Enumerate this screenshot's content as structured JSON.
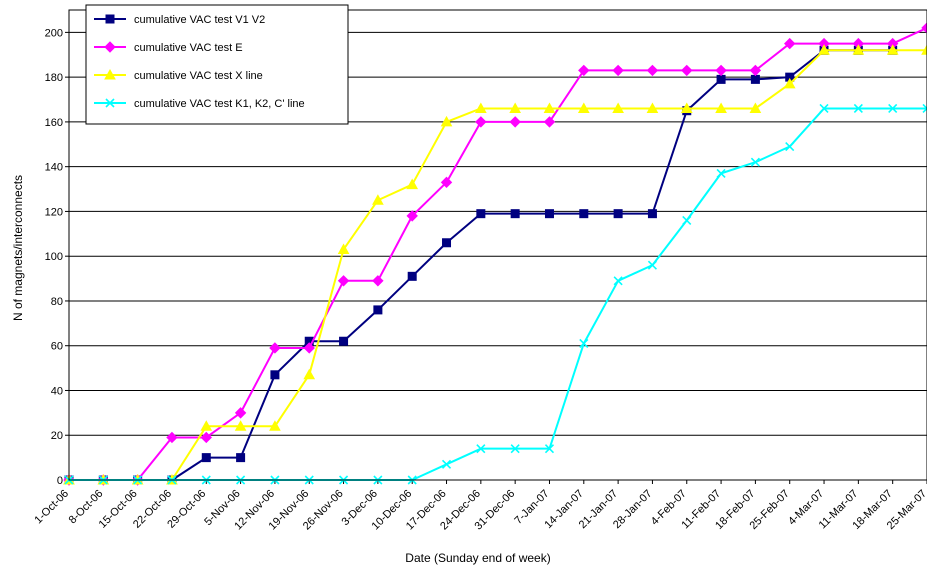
{
  "chart_data": {
    "type": "line",
    "title": "",
    "xlabel": "Date (Sunday end of week)",
    "ylabel": "N of magnets/interconnects",
    "ylim": [
      0,
      210
    ],
    "yticks": [
      0,
      20,
      40,
      60,
      80,
      100,
      120,
      140,
      160,
      180,
      200
    ],
    "grid": "horizontal",
    "legend_position": "top-left",
    "categories": [
      "1-Oct-06",
      "8-Oct-06",
      "15-Oct-06",
      "22-Oct-06",
      "29-Oct-06",
      "5-Nov-06",
      "12-Nov-06",
      "19-Nov-06",
      "26-Nov-06",
      "3-Dec-06",
      "10-Dec-06",
      "17-Dec-06",
      "24-Dec-06",
      "31-Dec-06",
      "7-Jan-07",
      "14-Jan-07",
      "21-Jan-07",
      "28-Jan-07",
      "4-Feb-07",
      "11-Feb-07",
      "18-Feb-07",
      "25-Feb-07",
      "4-Mar-07",
      "11-Mar-07",
      "18-Mar-07",
      "25-Mar-07"
    ],
    "series": [
      {
        "name": "cumulative VAC test V1 V2",
        "color": "#000080",
        "marker": "square",
        "x": [
          0,
          1,
          2,
          3,
          4,
          5,
          6,
          7,
          8,
          9,
          10,
          11,
          12,
          13,
          14,
          15,
          16,
          17,
          18,
          19,
          20,
          21,
          22,
          23,
          24
        ],
        "values": [
          0,
          0,
          0,
          0,
          10,
          10,
          47,
          62,
          62,
          76,
          91,
          106,
          119,
          119,
          119,
          119,
          119,
          119,
          165,
          179,
          179,
          180,
          192,
          192,
          192
        ]
      },
      {
        "name": "cumulative VAC test E",
        "color": "#FF00FF",
        "marker": "diamond",
        "x": [
          0,
          1,
          2,
          3,
          4,
          5,
          6,
          7,
          8,
          9,
          10,
          11,
          12,
          13,
          14,
          15,
          16,
          17,
          18,
          19,
          20,
          21,
          22,
          23,
          24,
          25
        ],
        "values": [
          0,
          0,
          0,
          19,
          19,
          30,
          59,
          59,
          89,
          89,
          118,
          133,
          160,
          160,
          160,
          183,
          183,
          183,
          183,
          183,
          183,
          195,
          195,
          195,
          195,
          202
        ]
      },
      {
        "name": "cumulative VAC test X line",
        "color": "#FFFF00",
        "marker": "triangle",
        "x": [
          0,
          1,
          2,
          3,
          4,
          5,
          6,
          7,
          8,
          9,
          10,
          11,
          12,
          13,
          14,
          15,
          16,
          17,
          18,
          19,
          20,
          21,
          22,
          23,
          24,
          25
        ],
        "values": [
          0,
          0,
          0,
          0,
          24,
          24,
          24,
          47,
          103,
          125,
          132,
          160,
          166,
          166,
          166,
          166,
          166,
          166,
          166,
          166,
          166,
          177,
          192,
          192,
          192,
          192
        ]
      },
      {
        "name": "cumulative VAC test K1, K2, C' line",
        "color": "#00FFFF",
        "marker": "x",
        "x": [
          0,
          1,
          2,
          3,
          4,
          5,
          6,
          7,
          8,
          9,
          10,
          11,
          12,
          13,
          14,
          15,
          16,
          17,
          18,
          19,
          20,
          21,
          22,
          23,
          24,
          25
        ],
        "values": [
          0,
          0,
          0,
          0,
          0,
          0,
          0,
          0,
          0,
          0,
          0,
          7,
          14,
          14,
          14,
          61,
          89,
          96,
          116,
          137,
          142,
          149,
          166,
          166,
          166,
          166
        ]
      }
    ]
  }
}
